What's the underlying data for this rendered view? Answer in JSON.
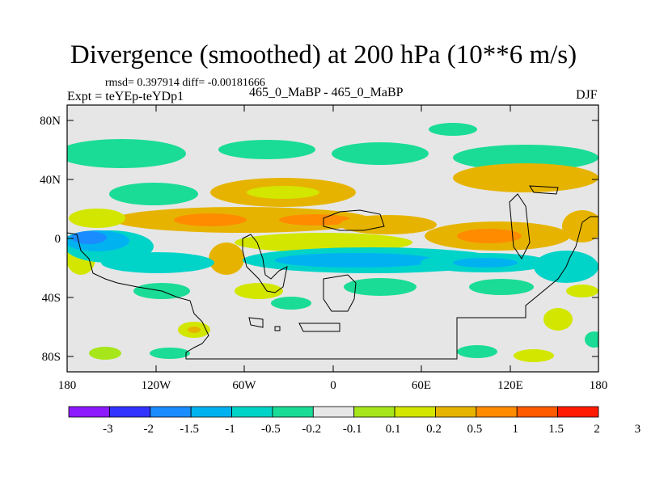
{
  "header": {
    "title": "Divergence (smoothed) at 200 hPa (10**6 m/s)",
    "stats": "rmsd= 0.397914 diff= -0.00181666",
    "expt": "Expt = teYEp-teYDp1",
    "case": "465_0_MaBP - 465_0_MaBP",
    "season": "DJF"
  },
  "axes": {
    "y_ticks": [
      "80N",
      "40N",
      "0",
      "40S",
      "80S"
    ],
    "x_ticks": [
      "180",
      "120W",
      "60W",
      "0",
      "60E",
      "120E",
      "180"
    ]
  },
  "colorbar": {
    "colors": [
      "#8c1aff",
      "#3333ff",
      "#1a8cff",
      "#00b3f0",
      "#00d4c8",
      "#1adc96",
      "#e6e6e6",
      "#a6e61a",
      "#d2e600",
      "#e6b400",
      "#ff8c00",
      "#ff5a00",
      "#ff1a00"
    ],
    "labels": [
      "-3",
      "-2",
      "-1.5",
      "-1",
      "-0.5",
      "-0.2",
      "-0.1",
      "0.1",
      "0.2",
      "0.5",
      "1",
      "1.5",
      "2",
      "3"
    ]
  }
}
